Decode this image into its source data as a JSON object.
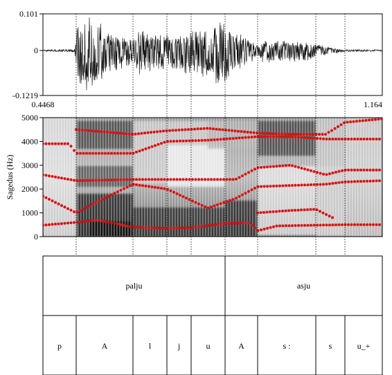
{
  "waveform": {
    "y_max_label": "0.101",
    "y_zero_label": "0",
    "y_min_label": "-0.1219"
  },
  "time_axis": {
    "start_label": "0.4468",
    "end_label": "1.164"
  },
  "spectrogram": {
    "ylabel": "Sagedus (Hz)",
    "ticks": [
      "5000",
      "4000",
      "3000",
      "2000",
      "1000",
      "0"
    ]
  },
  "tiers": {
    "words": [
      {
        "label": "palju"
      },
      {
        "label": "asju"
      }
    ],
    "phones": [
      {
        "label": "p"
      },
      {
        "label": "A"
      },
      {
        "label": "l"
      },
      {
        "label": "j"
      },
      {
        "label": "u"
      },
      {
        "label": "A"
      },
      {
        "label": "s :"
      },
      {
        "label": "s"
      },
      {
        "label": "u_+"
      }
    ]
  },
  "colors": {
    "formant": "#dd1111",
    "boundary": "#000000"
  }
}
